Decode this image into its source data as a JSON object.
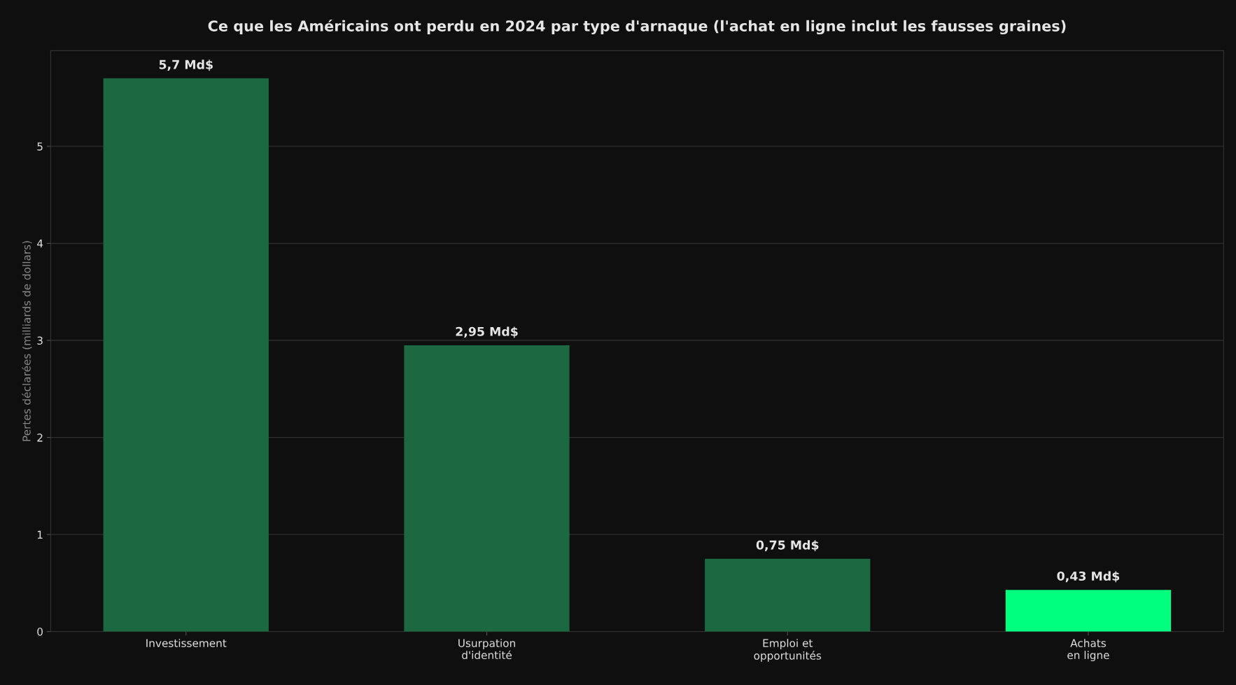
{
  "chart_data": {
    "type": "bar",
    "title": "Ce que les Américains ont perdu en 2024 par type d'arnaque (l'achat en ligne inclut les fausses graines)",
    "ylabel": "Pertes déclarées (milliards de dollars)",
    "categories": [
      "Investissement",
      "Usurpation\nd'identité",
      "Emploi et\nopportunités",
      "Achats\nen ligne"
    ],
    "values": [
      5.7,
      2.95,
      0.75,
      0.43
    ],
    "colors": [
      "#1b6841",
      "#1b6841",
      "#1b6841",
      "#00ff7f"
    ],
    "value_labels": [
      "5,7 Md$",
      "2,95 Md$",
      "0,75 Md$",
      "0,43 Md$"
    ],
    "ylim": [
      0,
      5.985
    ],
    "yticks": [
      0,
      1,
      2,
      3,
      4,
      5
    ],
    "grid": "y",
    "legend": false
  }
}
